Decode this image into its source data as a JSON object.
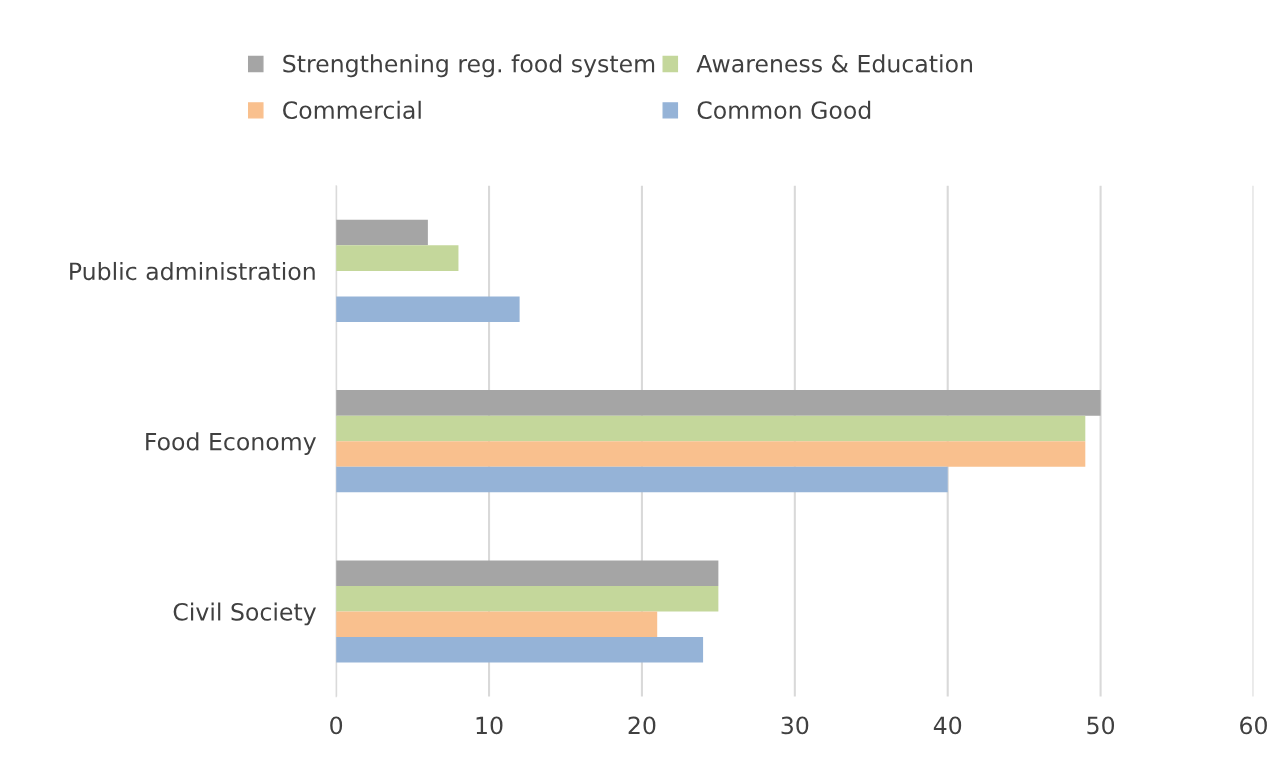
{
  "chart_data": {
    "type": "bar",
    "orientation": "horizontal",
    "categories": [
      "Public administration",
      "Food Economy",
      "Civil Society"
    ],
    "series": [
      {
        "name": "Strengthening reg. food system",
        "color": "#a5a5a5",
        "values": [
          6,
          50,
          25
        ]
      },
      {
        "name": "Awareness & Education",
        "color": "#c4d79b",
        "values": [
          8,
          49,
          25
        ]
      },
      {
        "name": "Commercial",
        "color": "#f9c08e",
        "values": [
          null,
          49,
          21
        ]
      },
      {
        "name": "Common Good",
        "color": "#95b3d7",
        "values": [
          12,
          40,
          24
        ]
      }
    ],
    "xlim": [
      0,
      60
    ],
    "xticks": [
      0,
      10,
      20,
      30,
      40,
      50,
      60
    ],
    "grid": "x",
    "legend": "top"
  }
}
